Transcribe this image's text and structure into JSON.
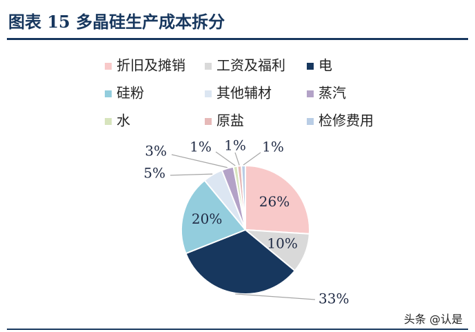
{
  "figure": {
    "title": "图表 15 多晶硅生产成本拆分"
  },
  "watermark": "头条 @认是",
  "colors": {
    "title": "#17375e",
    "rule": "#17375e",
    "label_text": "#1f2a44",
    "leader": "#a6a6a6"
  },
  "chart_data": {
    "type": "pie",
    "title": "",
    "legend_position": "top",
    "slices": [
      {
        "label": "折旧及摊销",
        "value": 26,
        "display": "26%",
        "color": "#f8c9c9"
      },
      {
        "label": "工资及福利",
        "value": 10,
        "display": "10%",
        "color": "#d9d9d9"
      },
      {
        "label": "电",
        "value": 33,
        "display": "33%",
        "color": "#17375e"
      },
      {
        "label": "硅粉",
        "value": 20,
        "display": "20%",
        "color": "#93cddd"
      },
      {
        "label": "其他辅材",
        "value": 5,
        "display": "5%",
        "color": "#dce6f2"
      },
      {
        "label": "蒸汽",
        "value": 3,
        "display": "3%",
        "color": "#b3a2c7"
      },
      {
        "label": "水",
        "value": 1,
        "display": "1%",
        "color": "#d7e4bd"
      },
      {
        "label": "原盐",
        "value": 1,
        "display": "1%",
        "color": "#e6b9b8"
      },
      {
        "label": "检修费用",
        "value": 1,
        "display": "1%",
        "color": "#b9cde5"
      }
    ]
  }
}
